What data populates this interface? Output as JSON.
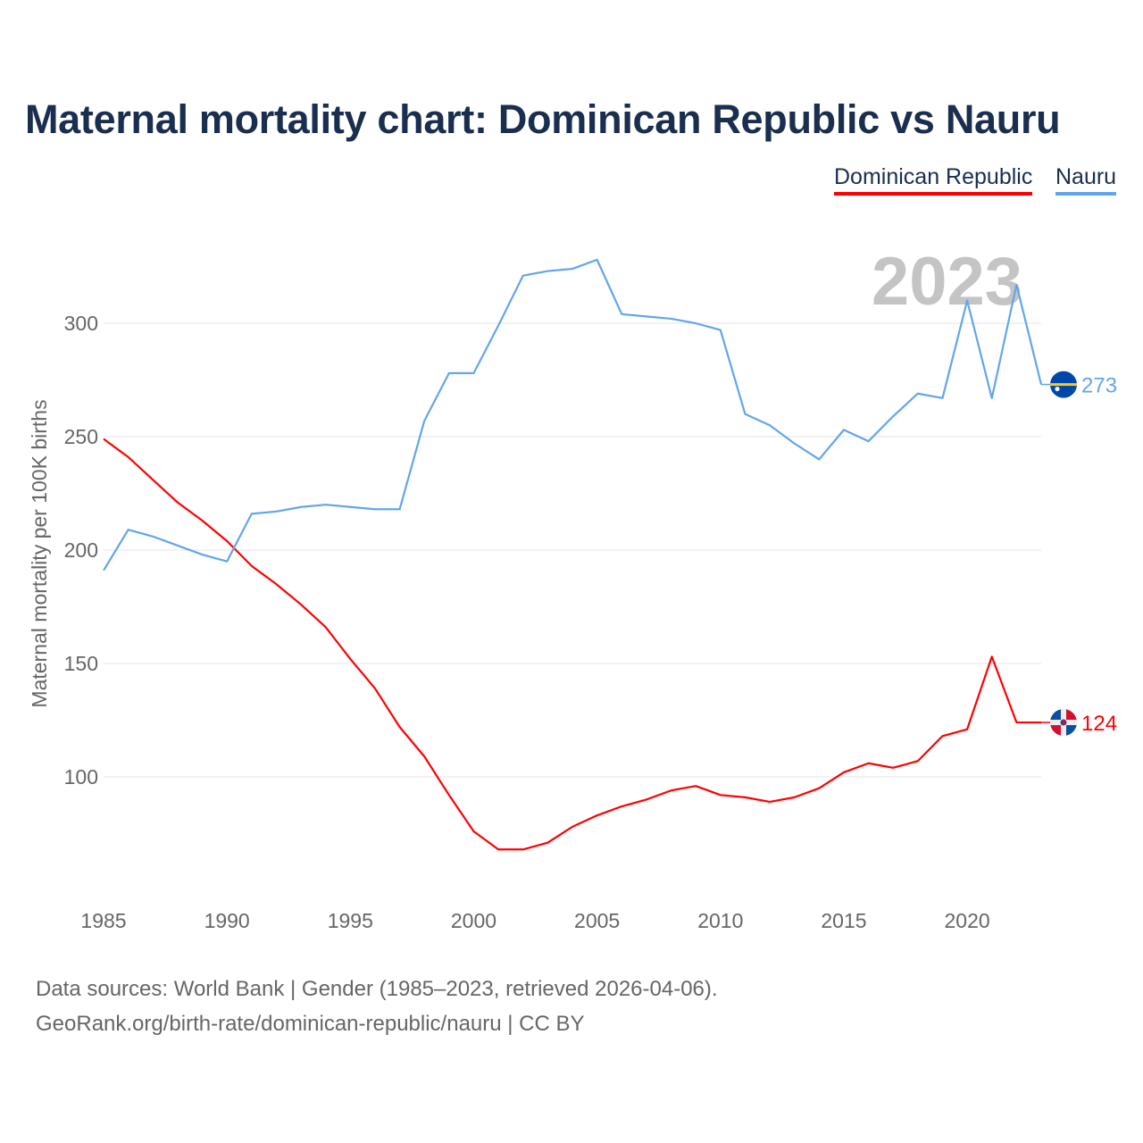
{
  "chart_data": {
    "type": "line",
    "title": "Maternal mortality chart: Dominican Republic vs Nauru",
    "xlabel": "",
    "ylabel": "Maternal mortality per 100K births",
    "year_label": "2023",
    "xlim": [
      1985,
      2023
    ],
    "ylim": [
      45,
      335
    ],
    "x_ticks": [
      1985,
      1990,
      1995,
      2000,
      2005,
      2010,
      2015,
      2020
    ],
    "y_ticks": [
      100,
      150,
      200,
      250,
      300
    ],
    "grid": true,
    "legend_placement": "top-right",
    "x": [
      1985,
      1986,
      1987,
      1988,
      1989,
      1990,
      1991,
      1992,
      1993,
      1994,
      1995,
      1996,
      1997,
      1998,
      1999,
      2000,
      2001,
      2002,
      2003,
      2004,
      2005,
      2006,
      2007,
      2008,
      2009,
      2010,
      2011,
      2012,
      2013,
      2014,
      2015,
      2016,
      2017,
      2018,
      2019,
      2020,
      2021,
      2022,
      2023
    ],
    "series": [
      {
        "name": "Dominican Republic",
        "color": "#ff0000",
        "end_label": "124",
        "values": [
          249,
          241,
          231,
          221,
          213,
          204,
          193,
          185,
          176,
          166,
          152,
          139,
          122,
          109,
          92,
          76,
          68,
          68,
          71,
          78,
          83,
          87,
          90,
          94,
          96,
          92,
          91,
          89,
          91,
          95,
          102,
          106,
          104,
          107,
          118,
          121,
          153,
          124,
          124
        ]
      },
      {
        "name": "Nauru",
        "color": "#62a6ea",
        "end_label": "273",
        "values": [
          191,
          209,
          206,
          202,
          198,
          195,
          216,
          217,
          219,
          220,
          219,
          218,
          218,
          257,
          278,
          278,
          299,
          321,
          323,
          324,
          328,
          304,
          303,
          302,
          300,
          297,
          260,
          255,
          247,
          240,
          253,
          248,
          259,
          269,
          267,
          310,
          267,
          317,
          273
        ]
      }
    ]
  },
  "footer": {
    "line1": "Data sources: World Bank | Gender (1985–2023, retrieved 2026-04-06).",
    "line2": "GeoRank.org/birth-rate/dominican-republic/nauru | CC BY"
  }
}
